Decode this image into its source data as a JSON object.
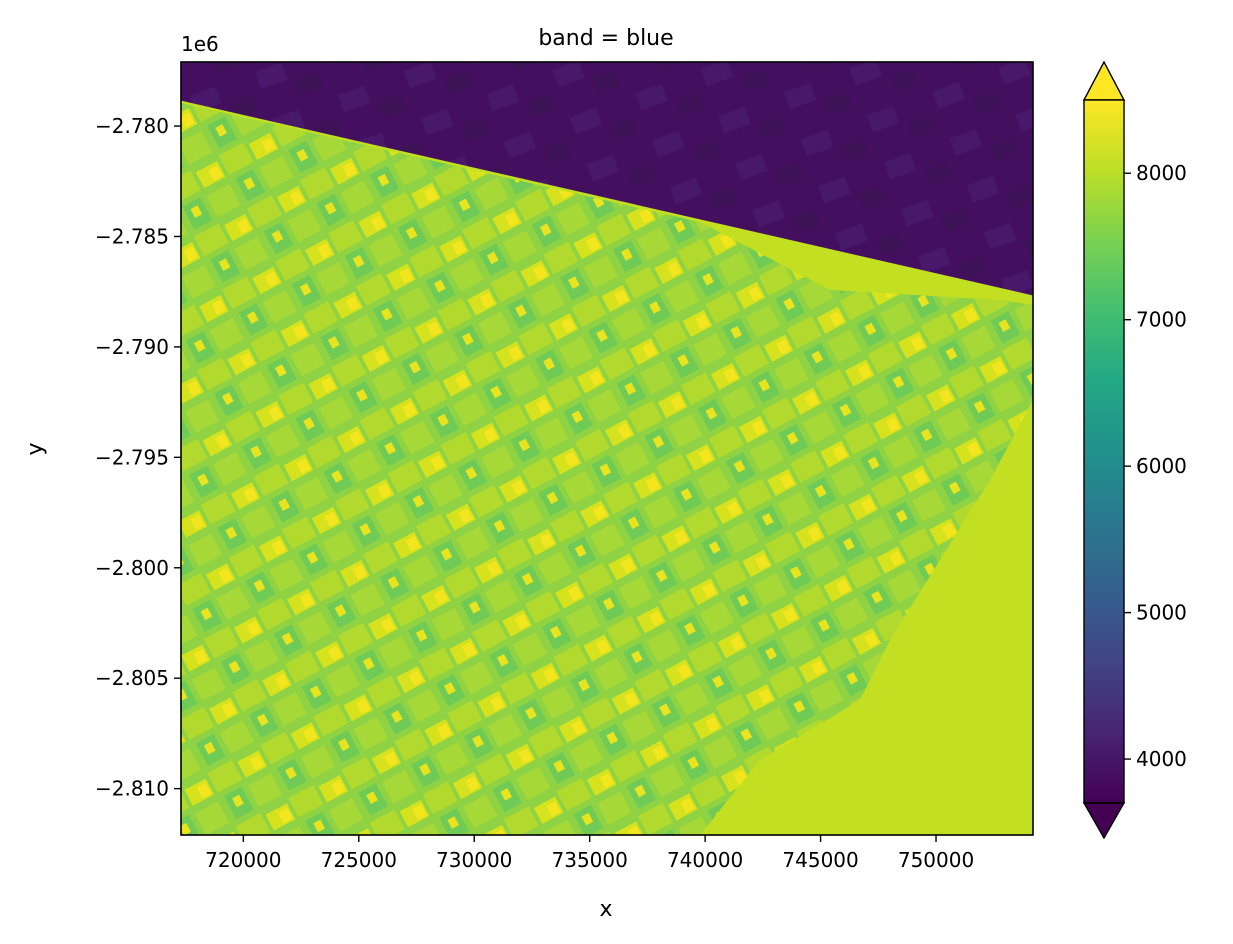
{
  "chart_data": {
    "type": "heatmap",
    "title": "band = blue",
    "xlabel": "x",
    "ylabel": "y",
    "y_offset_label": "1e6",
    "xlim": [
      717300,
      754200
    ],
    "ylim": [
      -2.8121,
      -2.7771
    ],
    "x_ticks": [
      720000,
      725000,
      730000,
      735000,
      740000,
      745000,
      750000
    ],
    "x_tick_labels": [
      "720000",
      "725000",
      "730000",
      "735000",
      "740000",
      "745000",
      "750000"
    ],
    "y_ticks": [
      -2.78,
      -2.785,
      -2.79,
      -2.795,
      -2.8,
      -2.805,
      -2.81
    ],
    "y_tick_labels": [
      "−2.780",
      "−2.785",
      "−2.790",
      "−2.795",
      "−2.800",
      "−2.805",
      "−2.810"
    ],
    "colormap": "viridis",
    "colorbar": {
      "range": [
        3700,
        8500
      ],
      "extend": "both",
      "ticks": [
        4000,
        5000,
        6000,
        7000,
        8000
      ],
      "tick_labels": [
        "4000",
        "5000",
        "6000",
        "7000",
        "8000"
      ]
    },
    "regions": [
      {
        "name": "nodata-wedge",
        "value": 3800,
        "boundary_x": [
          717300,
          754200
        ],
        "boundary_y": [
          -2.77885,
          -2.78767
        ]
      },
      {
        "name": "agricultural-fields",
        "value": 7500
      },
      {
        "name": "uniform-area",
        "value": 7900
      }
    ],
    "grid": false
  }
}
